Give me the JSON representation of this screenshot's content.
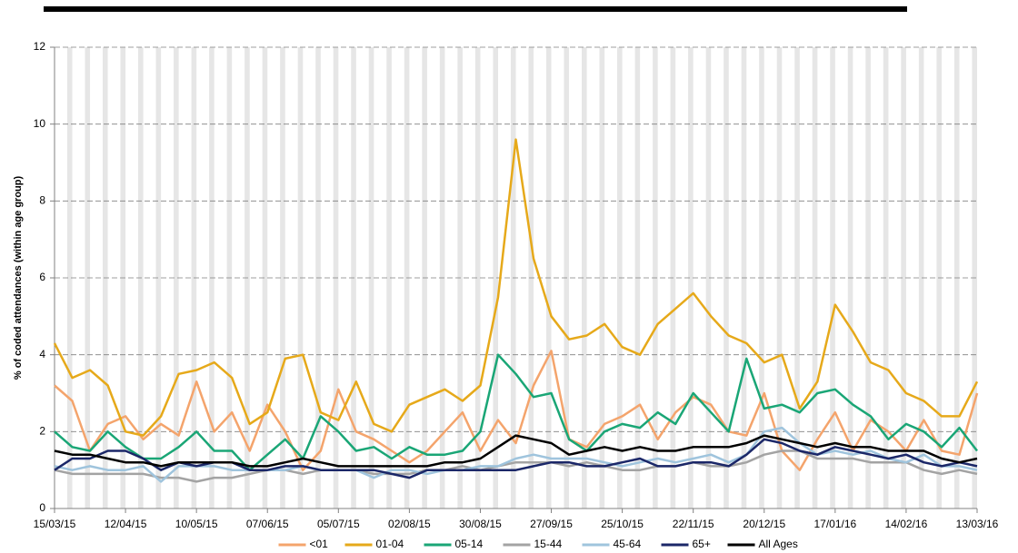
{
  "chart_data": {
    "type": "line",
    "y_label": "% of coded attendances (within age group)",
    "x": [
      "15/03/15",
      "22/03/15",
      "29/03/15",
      "05/04/15",
      "12/04/15",
      "19/04/15",
      "26/04/15",
      "03/05/15",
      "10/05/15",
      "17/05/15",
      "24/05/15",
      "31/05/15",
      "07/06/15",
      "14/06/15",
      "21/06/15",
      "28/06/15",
      "05/07/15",
      "12/07/15",
      "19/07/15",
      "26/07/15",
      "02/08/15",
      "09/08/15",
      "16/08/15",
      "23/08/15",
      "30/08/15",
      "06/09/15",
      "13/09/15",
      "20/09/15",
      "27/09/15",
      "04/10/15",
      "11/10/15",
      "18/10/15",
      "25/10/15",
      "01/11/15",
      "08/11/15",
      "15/11/15",
      "22/11/15",
      "29/11/15",
      "06/12/15",
      "13/12/15",
      "20/12/15",
      "27/12/15",
      "03/01/16",
      "10/01/16",
      "17/01/16",
      "24/01/16",
      "31/01/16",
      "07/02/16",
      "14/02/16",
      "21/02/16",
      "28/02/16",
      "06/03/16",
      "13/03/16"
    ],
    "xlim": [
      "15/03/15",
      "13/03/16"
    ],
    "xticks": [
      "15/03/15",
      "12/04/15",
      "10/05/15",
      "07/06/15",
      "05/07/15",
      "02/08/15",
      "30/08/15",
      "27/09/15",
      "25/10/15",
      "22/11/15",
      "20/12/15",
      "17/01/16",
      "14/02/16",
      "13/03/16"
    ],
    "ylim": [
      0,
      12
    ],
    "yticks": [
      0,
      2,
      4,
      6,
      8,
      10,
      12
    ],
    "grid": true,
    "legend": "bottom",
    "series": [
      {
        "name": "<01",
        "color": "#f4a46c",
        "values": [
          3.2,
          2.8,
          1.5,
          2.2,
          2.4,
          1.8,
          2.2,
          1.9,
          3.3,
          2.0,
          2.5,
          1.5,
          2.7,
          2.0,
          1.0,
          1.5,
          3.1,
          2.0,
          1.8,
          1.5,
          1.2,
          1.5,
          2.0,
          2.5,
          1.5,
          2.3,
          1.7,
          3.2,
          4.1,
          1.8,
          1.6,
          2.2,
          2.4,
          2.7,
          1.8,
          2.5,
          2.9,
          2.7,
          2.0,
          1.9,
          3.0,
          1.5,
          1.0,
          1.8,
          2.5,
          1.5,
          2.3,
          2.0,
          1.5,
          2.3,
          1.5,
          1.4,
          3.0
        ]
      },
      {
        "name": "01-04",
        "color": "#e6a91a",
        "values": [
          4.3,
          3.4,
          3.6,
          3.2,
          2.0,
          1.9,
          2.4,
          3.5,
          3.6,
          3.8,
          3.4,
          2.2,
          2.5,
          3.9,
          4.0,
          2.5,
          2.3,
          3.3,
          2.2,
          2.0,
          2.7,
          2.9,
          3.1,
          2.8,
          3.2,
          5.5,
          9.6,
          6.5,
          5.0,
          4.4,
          4.5,
          4.8,
          4.2,
          4.0,
          4.8,
          5.2,
          5.6,
          5.0,
          4.5,
          4.3,
          3.8,
          4.0,
          2.6,
          3.3,
          5.3,
          4.6,
          3.8,
          3.6,
          3.0,
          2.8,
          2.4,
          2.4,
          3.3
        ]
      },
      {
        "name": "05-14",
        "color": "#1aa676",
        "values": [
          2.0,
          1.6,
          1.5,
          2.0,
          1.6,
          1.3,
          1.3,
          1.6,
          2.0,
          1.5,
          1.5,
          1.0,
          1.4,
          1.8,
          1.3,
          2.4,
          2.0,
          1.5,
          1.6,
          1.3,
          1.6,
          1.4,
          1.4,
          1.5,
          2.0,
          4.0,
          3.5,
          2.9,
          3.0,
          1.8,
          1.5,
          2.0,
          2.2,
          2.1,
          2.5,
          2.2,
          3.0,
          2.5,
          2.0,
          3.9,
          2.6,
          2.7,
          2.5,
          3.0,
          3.1,
          2.7,
          2.4,
          1.8,
          2.2,
          2.0,
          1.6,
          2.1,
          1.5
        ]
      },
      {
        "name": "15-44",
        "color": "#a3a3a3",
        "values": [
          1.0,
          0.9,
          0.9,
          0.9,
          0.9,
          0.9,
          0.8,
          0.8,
          0.7,
          0.8,
          0.8,
          0.9,
          1.0,
          1.0,
          0.9,
          1.0,
          1.0,
          1.0,
          0.9,
          0.9,
          0.9,
          1.0,
          1.0,
          1.1,
          1.0,
          1.1,
          1.2,
          1.2,
          1.2,
          1.1,
          1.2,
          1.1,
          1.0,
          1.0,
          1.1,
          1.1,
          1.2,
          1.1,
          1.1,
          1.2,
          1.4,
          1.5,
          1.5,
          1.3,
          1.3,
          1.3,
          1.2,
          1.2,
          1.2,
          1.0,
          0.9,
          1.0,
          0.9
        ]
      },
      {
        "name": "45-64",
        "color": "#9fc4dd",
        "values": [
          1.1,
          1.0,
          1.1,
          1.0,
          1.0,
          1.1,
          0.7,
          1.1,
          1.1,
          1.1,
          1.0,
          1.0,
          1.0,
          1.0,
          1.1,
          1.0,
          1.0,
          1.0,
          0.8,
          1.0,
          1.0,
          0.9,
          1.0,
          1.0,
          1.1,
          1.1,
          1.3,
          1.4,
          1.3,
          1.3,
          1.3,
          1.2,
          1.1,
          1.2,
          1.3,
          1.2,
          1.3,
          1.4,
          1.2,
          1.4,
          2.0,
          2.1,
          1.7,
          1.4,
          1.5,
          1.4,
          1.5,
          1.3,
          1.2,
          1.4,
          1.1,
          1.1,
          1.0
        ]
      },
      {
        "name": "65+",
        "color": "#1b2768",
        "values": [
          1.0,
          1.3,
          1.3,
          1.5,
          1.5,
          1.3,
          1.0,
          1.2,
          1.1,
          1.2,
          1.2,
          1.0,
          1.0,
          1.1,
          1.1,
          1.0,
          1.0,
          1.0,
          1.0,
          0.9,
          0.8,
          1.0,
          1.0,
          1.0,
          1.0,
          1.0,
          1.0,
          1.1,
          1.2,
          1.2,
          1.1,
          1.1,
          1.2,
          1.3,
          1.1,
          1.1,
          1.2,
          1.2,
          1.1,
          1.4,
          1.8,
          1.7,
          1.5,
          1.4,
          1.6,
          1.5,
          1.4,
          1.3,
          1.4,
          1.2,
          1.1,
          1.2,
          1.1
        ]
      },
      {
        "name": "All Ages",
        "color": "#000000",
        "values": [
          1.5,
          1.4,
          1.4,
          1.3,
          1.2,
          1.2,
          1.1,
          1.2,
          1.2,
          1.2,
          1.2,
          1.1,
          1.1,
          1.2,
          1.3,
          1.2,
          1.1,
          1.1,
          1.1,
          1.1,
          1.1,
          1.1,
          1.2,
          1.2,
          1.3,
          1.6,
          1.9,
          1.8,
          1.7,
          1.4,
          1.5,
          1.6,
          1.5,
          1.6,
          1.5,
          1.5,
          1.6,
          1.6,
          1.6,
          1.7,
          1.9,
          1.8,
          1.7,
          1.6,
          1.7,
          1.6,
          1.6,
          1.5,
          1.5,
          1.5,
          1.3,
          1.2,
          1.3
        ]
      }
    ]
  }
}
